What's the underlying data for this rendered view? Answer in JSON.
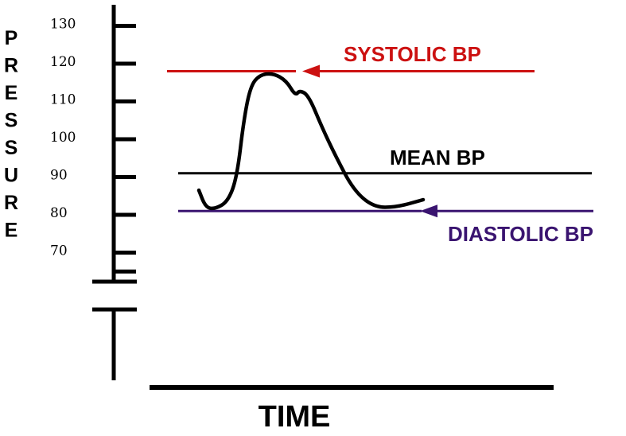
{
  "chart_data": {
    "type": "line",
    "ylabel": "PRESSURE",
    "xlabel": "TIME",
    "yticks": [
      "130",
      "120",
      "110",
      "100",
      "90",
      "80",
      "70"
    ],
    "axis_break": true,
    "reference_lines": [
      {
        "label": "SYSTOLIC BP",
        "value": 118,
        "color": "#cc1111",
        "arrow": true
      },
      {
        "label": "MEAN BP",
        "value": 91,
        "color": "#000000",
        "arrow": false
      },
      {
        "label": "DIASTOLIC BP",
        "value": 81,
        "color": "#3a1470",
        "arrow": true
      }
    ],
    "series": [
      {
        "values": [
          {
            "x": 0.0,
            "y": 86.5
          },
          {
            "x": 0.03,
            "y": 82.0
          },
          {
            "x": 0.07,
            "y": 81.5
          },
          {
            "x": 0.13,
            "y": 83.5
          },
          {
            "x": 0.17,
            "y": 90.0
          },
          {
            "x": 0.2,
            "y": 105.0
          },
          {
            "x": 0.23,
            "y": 114.0
          },
          {
            "x": 0.27,
            "y": 117.0
          },
          {
            "x": 0.33,
            "y": 117.5
          },
          {
            "x": 0.39,
            "y": 115.5
          },
          {
            "x": 0.43,
            "y": 111.5
          },
          {
            "x": 0.45,
            "y": 113.0
          },
          {
            "x": 0.49,
            "y": 111.5
          },
          {
            "x": 0.55,
            "y": 103.0
          },
          {
            "x": 0.61,
            "y": 95.5
          },
          {
            "x": 0.69,
            "y": 86.5
          },
          {
            "x": 0.78,
            "y": 82.0
          },
          {
            "x": 0.88,
            "y": 82.0
          },
          {
            "x": 1.0,
            "y": 84.0
          }
        ]
      }
    ]
  }
}
